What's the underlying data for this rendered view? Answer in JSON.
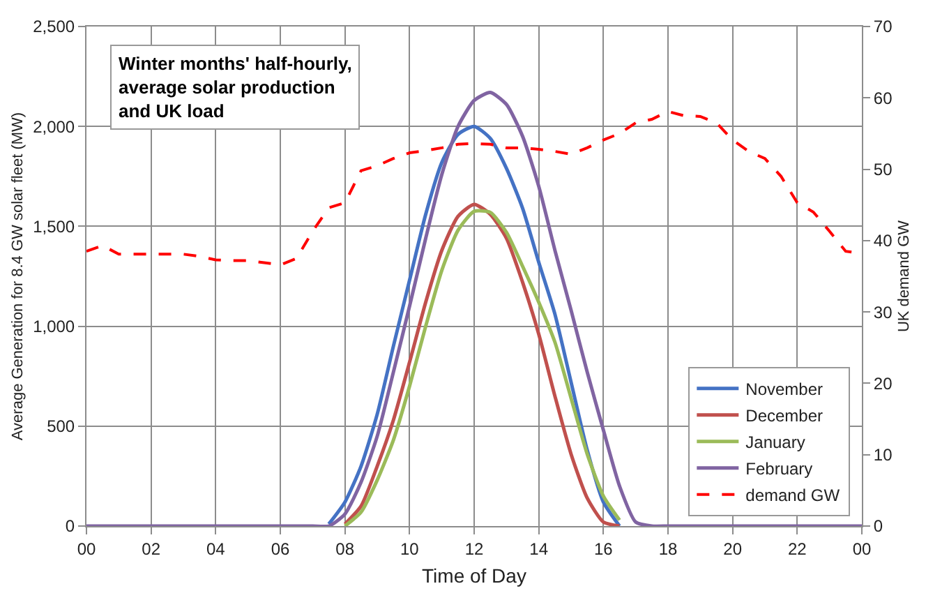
{
  "chart_data": {
    "type": "line",
    "title": "Winter months' half-hourly,\naverage solar production\nand UK load",
    "xlabel": "Time of Day",
    "ylabel": "Average Generation for 8.4 GW solar fleet (MW)",
    "y2label": "UK demand GW",
    "x": [
      0,
      0.5,
      1,
      1.5,
      2,
      2.5,
      3,
      3.5,
      4,
      4.5,
      5,
      5.5,
      6,
      6.5,
      7,
      7.5,
      8,
      8.5,
      9,
      9.5,
      10,
      10.5,
      11,
      11.5,
      12,
      12.5,
      13,
      13.5,
      14,
      14.5,
      15,
      15.5,
      16,
      16.5,
      17,
      17.5,
      18,
      18.5,
      19,
      19.5,
      20,
      20.5,
      21,
      21.5,
      22,
      22.5,
      23,
      23.5,
      24
    ],
    "series": [
      {
        "name": "November",
        "color": "#4472c4",
        "values": [
          null,
          null,
          null,
          null,
          null,
          null,
          null,
          null,
          null,
          null,
          null,
          null,
          null,
          null,
          null,
          10,
          120,
          300,
          560,
          900,
          1230,
          1560,
          1820,
          1960,
          2000,
          1940,
          1790,
          1590,
          1320,
          1060,
          720,
          380,
          120,
          0,
          null,
          null,
          null,
          null,
          null,
          null,
          null,
          null,
          null,
          null,
          null,
          null,
          null,
          null,
          null
        ]
      },
      {
        "name": "December",
        "color": "#c0504d",
        "values": [
          null,
          null,
          null,
          null,
          null,
          null,
          null,
          null,
          null,
          null,
          null,
          null,
          null,
          null,
          null,
          null,
          10,
          100,
          300,
          530,
          820,
          1120,
          1380,
          1550,
          1610,
          1560,
          1440,
          1220,
          960,
          650,
          360,
          140,
          20,
          0,
          null,
          null,
          null,
          null,
          null,
          null,
          null,
          null,
          null,
          null,
          null,
          null,
          null,
          null,
          null
        ]
      },
      {
        "name": "January",
        "color": "#9bbb59",
        "values": [
          null,
          null,
          null,
          null,
          null,
          null,
          null,
          null,
          null,
          null,
          null,
          null,
          null,
          null,
          null,
          null,
          0,
          70,
          230,
          430,
          700,
          1000,
          1280,
          1480,
          1575,
          1570,
          1470,
          1300,
          1120,
          920,
          640,
          360,
          150,
          30,
          null,
          null,
          null,
          null,
          null,
          null,
          null,
          null,
          null,
          null,
          null,
          null,
          null,
          null,
          null
        ]
      },
      {
        "name": "February",
        "color": "#8064a2",
        "values": [
          0,
          0,
          0,
          0,
          0,
          0,
          0,
          0,
          0,
          0,
          0,
          0,
          0,
          0,
          0,
          0,
          60,
          220,
          450,
          770,
          1100,
          1440,
          1760,
          2000,
          2130,
          2170,
          2110,
          1950,
          1700,
          1380,
          1080,
          770,
          480,
          200,
          20,
          0,
          0,
          0,
          0,
          0,
          0,
          0,
          0,
          0,
          0,
          0,
          0,
          0,
          0
        ]
      },
      {
        "name": "demand GW",
        "color": "#ff0000",
        "axis": "y2",
        "line_style": "dashed",
        "values": [
          38.5,
          39.3,
          38.1,
          38.1,
          38.1,
          38.1,
          38.1,
          37.8,
          37.3,
          37.2,
          37.2,
          36.9,
          36.6,
          37.5,
          41.3,
          44.6,
          45.3,
          49.8,
          50.5,
          51.5,
          52.3,
          52.6,
          53.0,
          53.5,
          53.6,
          53.5,
          53.0,
          53.0,
          52.8,
          52.5,
          52.1,
          53.0,
          54.1,
          55.0,
          56.5,
          57.0,
          58.1,
          57.5,
          57.4,
          56.5,
          54.1,
          52.5,
          51.5,
          49.0,
          45.3,
          44.0,
          41.3,
          38.5,
          38.2
        ]
      }
    ],
    "xlim": [
      0,
      24
    ],
    "xticks": [
      {
        "value": 0,
        "label": "00"
      },
      {
        "value": 2,
        "label": "02"
      },
      {
        "value": 4,
        "label": "04"
      },
      {
        "value": 6,
        "label": "06"
      },
      {
        "value": 8,
        "label": "08"
      },
      {
        "value": 10,
        "label": "10"
      },
      {
        "value": 12,
        "label": "12"
      },
      {
        "value": 14,
        "label": "14"
      },
      {
        "value": 16,
        "label": "16"
      },
      {
        "value": 18,
        "label": "18"
      },
      {
        "value": 20,
        "label": "20"
      },
      {
        "value": 22,
        "label": "22"
      },
      {
        "value": 24,
        "label": "00"
      }
    ],
    "ylim": [
      0,
      2500
    ],
    "yticks": [
      0,
      500,
      {
        "value": 1000,
        "label": "1,000"
      },
      {
        "value": 1500,
        "label": "1,500"
      },
      {
        "value": 2000,
        "label": "2,000"
      },
      {
        "value": 2500,
        "label": "2,500"
      }
    ],
    "y2lim": [
      0,
      70
    ],
    "y2ticks": [
      0,
      10,
      20,
      30,
      40,
      50,
      60,
      70
    ],
    "grid": true,
    "legend": "bottom right",
    "marker": "none",
    "line_style": "solid"
  }
}
